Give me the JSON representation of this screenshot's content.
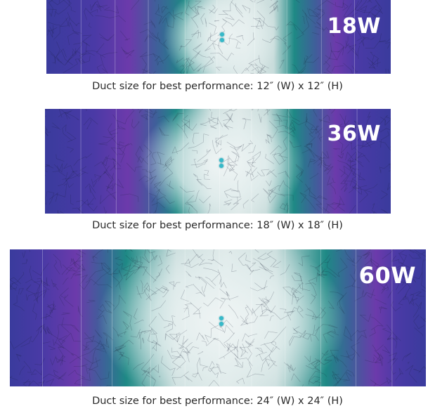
{
  "panels": [
    {
      "power_label": "18W",
      "caption": "Duct size for best performance: 12″ (W) x 12″ (H)"
    },
    {
      "power_label": "36W",
      "caption": "Duct size for best performance: 18″ (W) x 18″ (H)"
    },
    {
      "power_label": "60W",
      "caption": "Duct size for best performance: 24″ (W) x 24″ (H)"
    }
  ],
  "colors": {
    "edge_blue": "#3b3a9e",
    "purple": "#6a3aa8",
    "teal": "#1f8a86",
    "center_white": "#eef3f3",
    "led": "#36b9c9",
    "label_text": "#ffffff",
    "caption_text": "#2a2a2a"
  }
}
